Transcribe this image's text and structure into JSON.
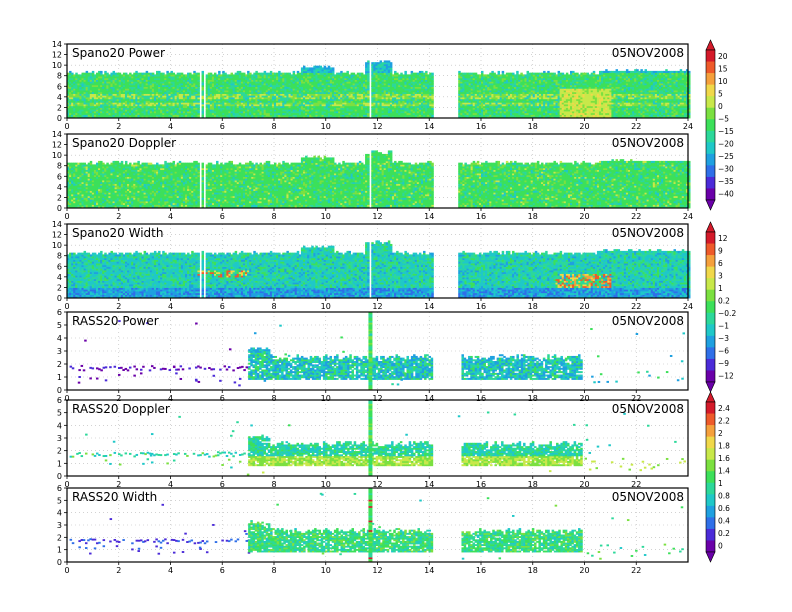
{
  "date_label": "05NOV2008",
  "colors": {
    "palette": [
      "#6a00a8",
      "#4b2bd8",
      "#2f6fe8",
      "#1fa0e0",
      "#1fc8c8",
      "#2cd89a",
      "#3ce05a",
      "#7be040",
      "#c8e84a",
      "#f0d84a",
      "#f5a03c",
      "#ee5a2a",
      "#d41a2a"
    ]
  },
  "colorbars": [
    {
      "ticks": [
        "20",
        "15",
        "10",
        "5",
        "0",
        "−5",
        "−15",
        "−20",
        "−25",
        "−30",
        "−35",
        "−40"
      ]
    },
    {
      "ticks": [
        "12",
        "9",
        "6",
        "3",
        "1",
        "0.2",
        "−0.2",
        "−1",
        "−3",
        "−6",
        "−9",
        "−12"
      ]
    },
    {
      "ticks": [
        "2.4",
        "2.2",
        "2",
        "1.8",
        "1.6",
        "1.4",
        "1",
        "0.8",
        "0.6",
        "0.4",
        "0.2",
        "0"
      ]
    }
  ],
  "chart_data": [
    {
      "type": "heatmap",
      "title": "Spano20  Power",
      "date": "05NOV2008",
      "xlim": [
        0,
        24
      ],
      "ylim": [
        0,
        14
      ],
      "x_ticks": [
        "0",
        "2",
        "4",
        "6",
        "8",
        "10",
        "12",
        "14",
        "16",
        "18",
        "20",
        "22",
        "24"
      ],
      "y_ticks": [
        "0",
        "2",
        "4",
        "6",
        "8",
        "10",
        "12",
        "14"
      ],
      "data_gaps_hours": [
        [
          14.1,
          15.1
        ]
      ],
      "echo_top_km": 9,
      "dominant_class": "green"
    },
    {
      "type": "heatmap",
      "title": "Spano20  Doppler",
      "date": "05NOV2008",
      "xlim": [
        0,
        24
      ],
      "ylim": [
        0,
        14
      ],
      "x_ticks": [
        "0",
        "2",
        "4",
        "6",
        "8",
        "10",
        "12",
        "14",
        "16",
        "18",
        "20",
        "22",
        "24"
      ],
      "y_ticks": [
        "0",
        "2",
        "4",
        "6",
        "8",
        "10",
        "12",
        "14"
      ],
      "data_gaps_hours": [
        [
          14.1,
          15.1
        ]
      ],
      "echo_top_km": 9,
      "dominant_class": "green"
    },
    {
      "type": "heatmap",
      "title": "Spano20  Width",
      "date": "05NOV2008",
      "xlim": [
        0,
        24
      ],
      "ylim": [
        0,
        14
      ],
      "x_ticks": [
        "0",
        "2",
        "4",
        "6",
        "8",
        "10",
        "12",
        "14",
        "16",
        "18",
        "20",
        "22",
        "24"
      ],
      "y_ticks": [
        "0",
        "2",
        "4",
        "6",
        "8",
        "10",
        "12",
        "14"
      ],
      "data_gaps_hours": [
        [
          14.1,
          15.1
        ]
      ],
      "echo_top_km": 9,
      "dominant_class": "cyan-green"
    },
    {
      "type": "heatmap",
      "title": "RASS20  Power",
      "date": "05NOV2008",
      "xlim": [
        0,
        24
      ],
      "ylim": [
        0,
        6
      ],
      "x_ticks": [
        "0",
        "2",
        "4",
        "6",
        "8",
        "10",
        "12",
        "14",
        "16",
        "18",
        "20",
        "22"
      ],
      "y_ticks": [
        "0",
        "1",
        "2",
        "3",
        "4",
        "5",
        "6"
      ],
      "data_gaps_hours": [
        [
          14.1,
          15.1
        ]
      ],
      "echo_top_km": 2.5
    },
    {
      "type": "heatmap",
      "title": "RASS20  Doppler",
      "date": "05NOV2008",
      "xlim": [
        0,
        24
      ],
      "ylim": [
        0,
        6
      ],
      "x_ticks": [
        "0",
        "2",
        "4",
        "6",
        "8",
        "10",
        "12",
        "14",
        "16",
        "18",
        "20",
        "22"
      ],
      "y_ticks": [
        "0",
        "1",
        "2",
        "3",
        "4",
        "5",
        "6"
      ],
      "data_gaps_hours": [
        [
          14.1,
          15.1
        ]
      ],
      "echo_top_km": 2.5
    },
    {
      "type": "heatmap",
      "title": "RASS20  Width",
      "date": "05NOV2008",
      "xlim": [
        0,
        24
      ],
      "ylim": [
        0,
        6
      ],
      "x_ticks": [
        "0",
        "2",
        "4",
        "6",
        "8",
        "10",
        "12",
        "14",
        "16",
        "18",
        "20",
        "22"
      ],
      "y_ticks": [
        "0",
        "1",
        "2",
        "3",
        "4",
        "5",
        "6"
      ],
      "data_gaps_hours": [
        [
          14.1,
          15.1
        ]
      ],
      "echo_top_km": 2.5
    }
  ]
}
